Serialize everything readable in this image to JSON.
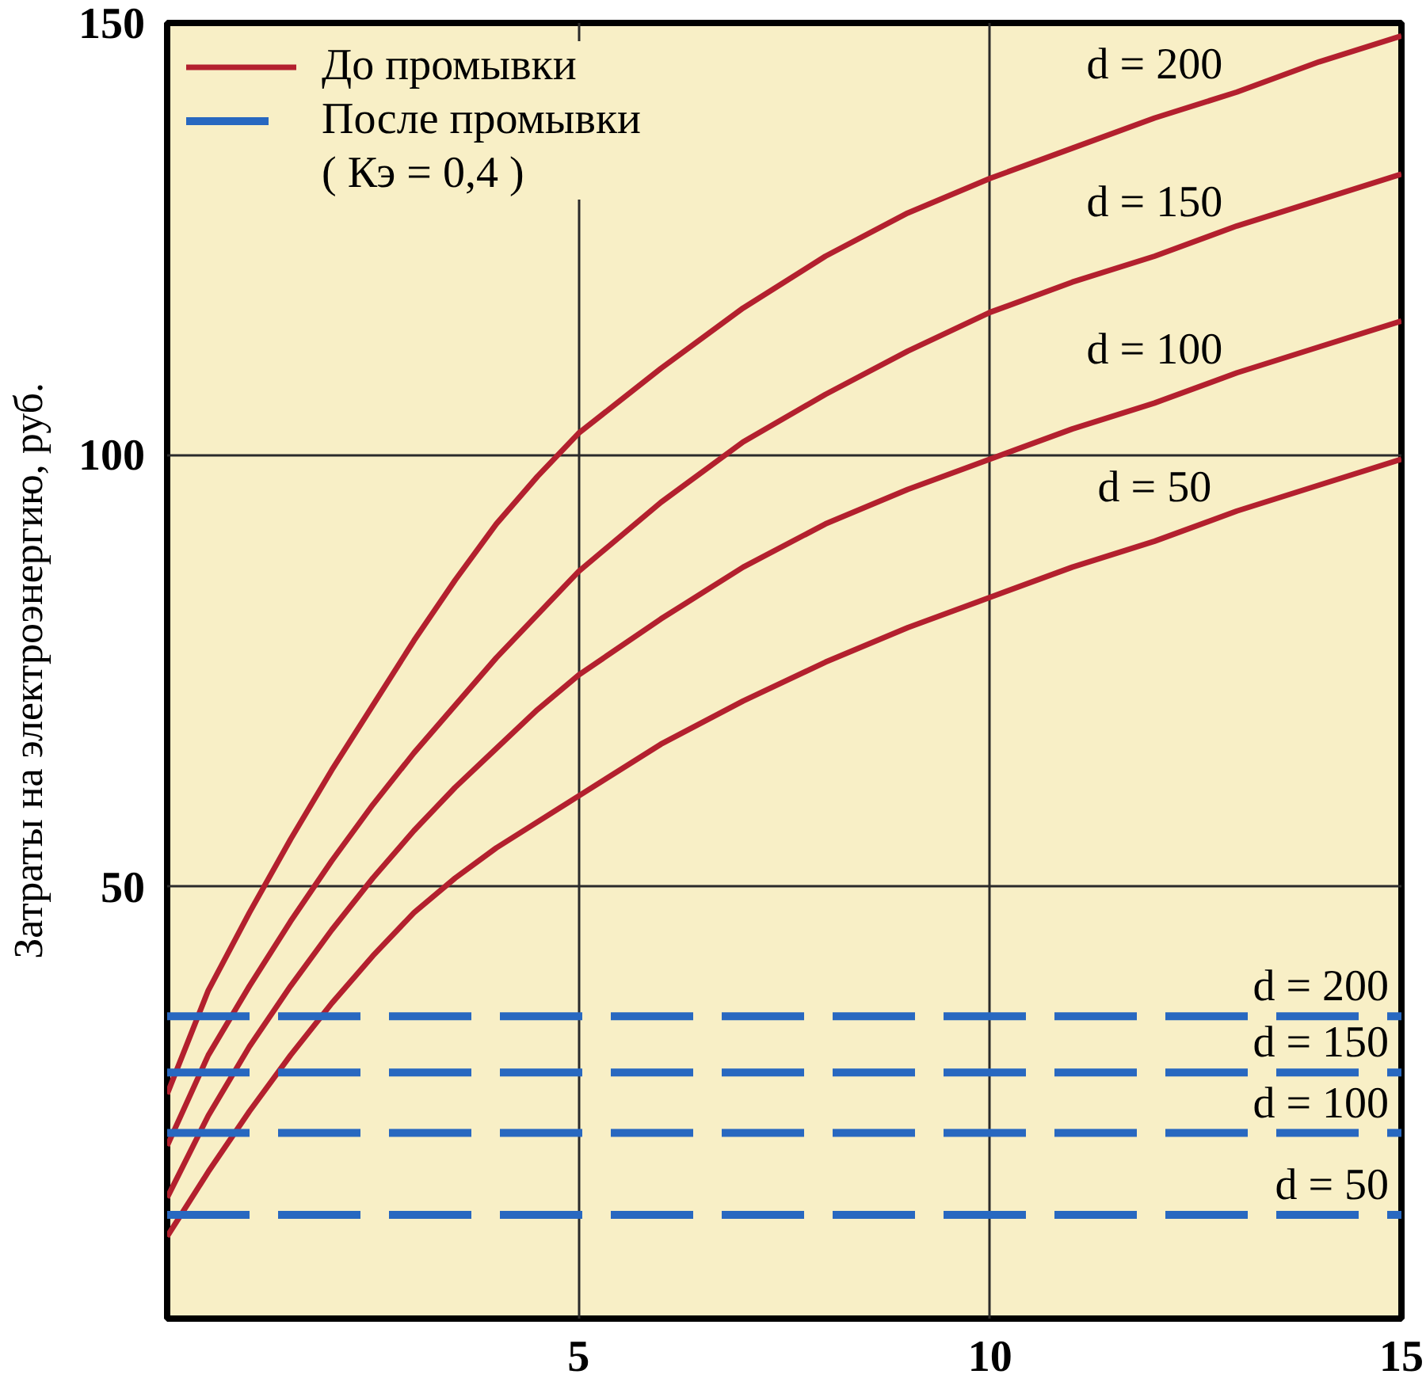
{
  "chart_data": {
    "type": "line",
    "ylabel": "Затраты на электроэнергию, руб.",
    "xlim": [
      0,
      15
    ],
    "ylim": [
      0,
      150
    ],
    "xticks": [
      5,
      10,
      15
    ],
    "yticks": [
      50,
      100,
      150
    ],
    "grid": true,
    "annotations": [
      "До промывки",
      "После промывки",
      "( Кэ = 0,4 )"
    ],
    "series": [
      {
        "name": "d = 200",
        "color": "#b3202e",
        "line_style": "solid",
        "x": [
          0,
          0.5,
          1,
          1.5,
          2,
          2.5,
          3,
          3.5,
          4,
          4.5,
          5,
          6,
          7,
          8,
          9,
          10,
          11,
          12,
          13,
          14,
          15
        ],
        "values": [
          26,
          38,
          47,
          55.5,
          63.5,
          71,
          78.5,
          85.5,
          92,
          97.5,
          102.5,
          110,
          117,
          123,
          128,
          132,
          135.5,
          139,
          142,
          145.5,
          148.5
        ]
      },
      {
        "name": "d = 150",
        "color": "#b3202e",
        "line_style": "solid",
        "x": [
          0,
          0.5,
          1,
          1.5,
          2,
          2.5,
          3,
          3.5,
          4,
          4.5,
          5,
          6,
          7,
          8,
          9,
          10,
          11,
          12,
          13,
          14,
          15
        ],
        "values": [
          20,
          30.5,
          38.5,
          46,
          53,
          59.5,
          65.5,
          71,
          76.5,
          81.5,
          86.5,
          94.5,
          101.5,
          107,
          112,
          116.5,
          120,
          123,
          126.5,
          129.5,
          132.5
        ]
      },
      {
        "name": "d = 100",
        "color": "#b3202e",
        "line_style": "solid",
        "x": [
          0,
          0.5,
          1,
          1.5,
          2,
          2.5,
          3,
          3.5,
          4,
          4.5,
          5,
          6,
          7,
          8,
          9,
          10,
          11,
          12,
          13,
          14,
          15
        ],
        "values": [
          14,
          23.5,
          31.5,
          38.5,
          45,
          51,
          56.5,
          61.5,
          66,
          70.5,
          74.5,
          81,
          87,
          92,
          96,
          99.5,
          103,
          106,
          109.5,
          112.5,
          115.5
        ]
      },
      {
        "name": "d = 50",
        "color": "#b3202e",
        "line_style": "solid",
        "x": [
          0,
          0.5,
          1,
          1.5,
          2,
          2.5,
          3,
          3.5,
          4,
          4.5,
          5,
          6,
          7,
          8,
          9,
          10,
          11,
          12,
          13,
          14,
          15
        ],
        "values": [
          9.5,
          17,
          24,
          30.5,
          36.5,
          42,
          47,
          51,
          54.5,
          57.5,
          60.5,
          66.5,
          71.5,
          76,
          80,
          83.5,
          87,
          90,
          93.5,
          96.5,
          99.5
        ]
      },
      {
        "name": "d = 200",
        "color": "#2868c0",
        "line_style": "dashed",
        "x": [
          0,
          15
        ],
        "values": [
          35,
          35
        ]
      },
      {
        "name": "d = 150",
        "color": "#2868c0",
        "line_style": "dashed",
        "x": [
          0,
          15
        ],
        "values": [
          28.5,
          28.5
        ]
      },
      {
        "name": "d = 100",
        "color": "#2868c0",
        "line_style": "dashed",
        "x": [
          0,
          15
        ],
        "values": [
          21.5,
          21.5
        ]
      },
      {
        "name": "d = 50",
        "color": "#2868c0",
        "line_style": "dashed",
        "x": [
          0,
          15
        ],
        "values": [
          12,
          12
        ]
      }
    ]
  }
}
